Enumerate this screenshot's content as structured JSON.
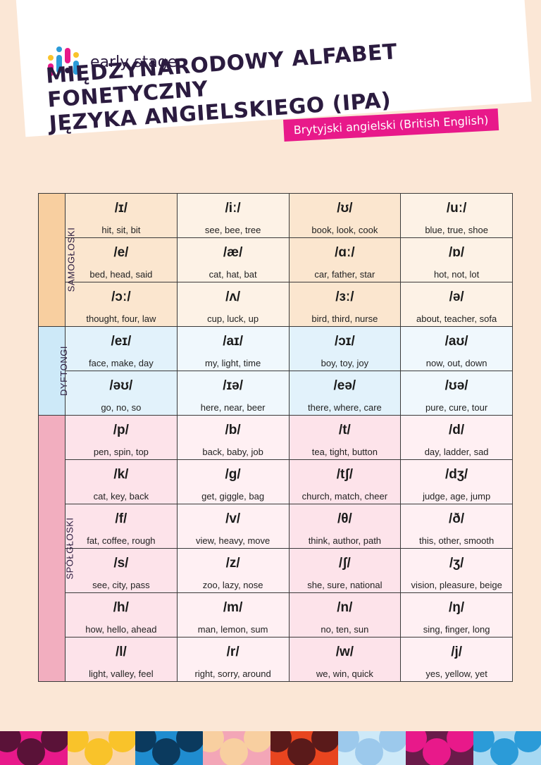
{
  "brand": {
    "name": "early stage",
    "colors": [
      "#e8198a",
      "#f9c32a",
      "#2b9bd8",
      "#2b1b3f"
    ]
  },
  "title": {
    "line1": "MIĘDZYNARODOWY ALFABET FONETYCZNY",
    "line2": "JĘZYKA ANGIELSKIEGO (IPA)"
  },
  "subtitle": "Brytyjski angielski (British English)",
  "categories": {
    "vowels": "SAMOGŁOSKI",
    "diphthongs": "DYFTONGI",
    "consonants": "SPÓŁGŁOSKI"
  },
  "vowels": [
    [
      {
        "symbol": "/ɪ/",
        "examples": "hit, sit, bit"
      },
      {
        "symbol": "/iː/",
        "examples": "see, bee, tree"
      },
      {
        "symbol": "/ʊ/",
        "examples": "book, look, cook"
      },
      {
        "symbol": "/uː/",
        "examples": "blue, true, shoe"
      }
    ],
    [
      {
        "symbol": "/e/",
        "examples": "bed, head, said"
      },
      {
        "symbol": "/æ/",
        "examples": "cat, hat, bat"
      },
      {
        "symbol": "/ɑː/",
        "examples": "car, father, star"
      },
      {
        "symbol": "/ɒ/",
        "examples": "hot, not, lot"
      }
    ],
    [
      {
        "symbol": "/ɔː/",
        "examples": "thought, four, law"
      },
      {
        "symbol": "/ʌ/",
        "examples": "cup, luck, up"
      },
      {
        "symbol": "/ɜː/",
        "examples": "bird, third, nurse"
      },
      {
        "symbol": "/ə/",
        "examples": "about, teacher, sofa"
      }
    ]
  ],
  "diphthongs": [
    [
      {
        "symbol": "/eɪ/",
        "examples": "face, make, day"
      },
      {
        "symbol": "/aɪ/",
        "examples": "my, light, time"
      },
      {
        "symbol": "/ɔɪ/",
        "examples": "boy, toy, joy"
      },
      {
        "symbol": "/aʊ/",
        "examples": "now, out, down"
      }
    ],
    [
      {
        "symbol": "/əʊ/",
        "examples": "go, no, so"
      },
      {
        "symbol": "/ɪə/",
        "examples": "here, near, beer"
      },
      {
        "symbol": "/eə/",
        "examples": "there, where, care"
      },
      {
        "symbol": "/ʊə/",
        "examples": "pure, cure, tour"
      }
    ]
  ],
  "consonants": [
    [
      {
        "symbol": "/p/",
        "examples": "pen, spin, top"
      },
      {
        "symbol": "/b/",
        "examples": "back, baby, job"
      },
      {
        "symbol": "/t/",
        "examples": "tea, tight, button"
      },
      {
        "symbol": "/d/",
        "examples": "day, ladder, sad"
      }
    ],
    [
      {
        "symbol": "/k/",
        "examples": "cat, key, back"
      },
      {
        "symbol": "/g/",
        "examples": "get, giggle, bag"
      },
      {
        "symbol": "/tʃ/",
        "examples": "church, match, cheer"
      },
      {
        "symbol": "/dʒ/",
        "examples": "judge, age, jump"
      }
    ],
    [
      {
        "symbol": "/f/",
        "examples": "fat, coffee, rough"
      },
      {
        "symbol": "/v/",
        "examples": "view, heavy, move"
      },
      {
        "symbol": "/θ/",
        "examples": "think, author, path"
      },
      {
        "symbol": "/ð/",
        "examples": "this, other, smooth"
      }
    ],
    [
      {
        "symbol": "/s/",
        "examples": "see, city, pass"
      },
      {
        "symbol": "/z/",
        "examples": "zoo, lazy, nose"
      },
      {
        "symbol": "/ʃ/",
        "examples": "she, sure, national"
      },
      {
        "symbol": "/ʒ/",
        "examples": "vision, pleasure, beige"
      }
    ],
    [
      {
        "symbol": "/h/",
        "examples": "how, hello, ahead"
      },
      {
        "symbol": "/m/",
        "examples": "man, lemon, sum"
      },
      {
        "symbol": "/n/",
        "examples": "no, ten, sun"
      },
      {
        "symbol": "/ŋ/",
        "examples": "sing, finger, long"
      }
    ],
    [
      {
        "symbol": "/l/",
        "examples": "light, valley, feel"
      },
      {
        "symbol": "/r/",
        "examples": "right, sorry, around"
      },
      {
        "symbol": "/w/",
        "examples": "we, win, quick"
      },
      {
        "symbol": "/j/",
        "examples": "yes, yellow, yet"
      }
    ]
  ],
  "footer_tiles": [
    {
      "bg": "#e8198a",
      "fg": "#5a1238"
    },
    {
      "bg": "#fbd4a5",
      "fg": "#f9c32a"
    },
    {
      "bg": "#1f8ccf",
      "fg": "#0b3a5e"
    },
    {
      "bg": "#f3a6b7",
      "fg": "#f8cfa0"
    },
    {
      "bg": "#e8451f",
      "fg": "#5a1a1a"
    },
    {
      "bg": "#cde9f8",
      "fg": "#9cc9ec"
    },
    {
      "bg": "#6a1b4a",
      "fg": "#e8198a"
    },
    {
      "bg": "#a6d8f2",
      "fg": "#2b9bd8"
    }
  ]
}
